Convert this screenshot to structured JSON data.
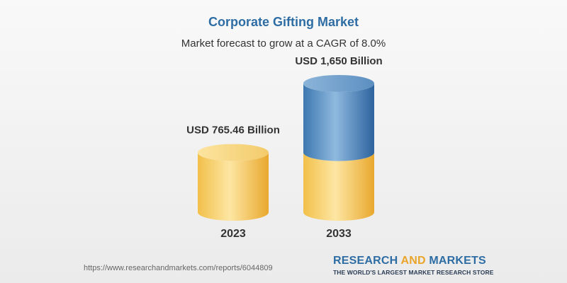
{
  "chart_data": {
    "type": "bar",
    "style": "cylinder",
    "title": "Corporate Gifting Market",
    "subtitle": "Market forecast to grow at a CAGR of 8.0%",
    "categories": [
      "2023",
      "2033"
    ],
    "values": [
      765.46,
      1650
    ],
    "value_labels": [
      "USD 765.46 Billion",
      "USD 1,650 Billion"
    ],
    "base_value": 765.46,
    "xlabel": "",
    "ylabel": "",
    "ylim": [
      0,
      1650
    ],
    "grid": false
  },
  "colors": {
    "title": "#2e6da4",
    "base": "#f3c24a",
    "growth": "#3f7db6"
  },
  "footer": {
    "source_url": "https://www.researchandmarkets.com/reports/6044809",
    "logo_research": "RESEARCH",
    "logo_and": "AND",
    "logo_markets": "MARKETS",
    "logo_tagline": "THE WORLD'S LARGEST MARKET RESEARCH STORE"
  }
}
